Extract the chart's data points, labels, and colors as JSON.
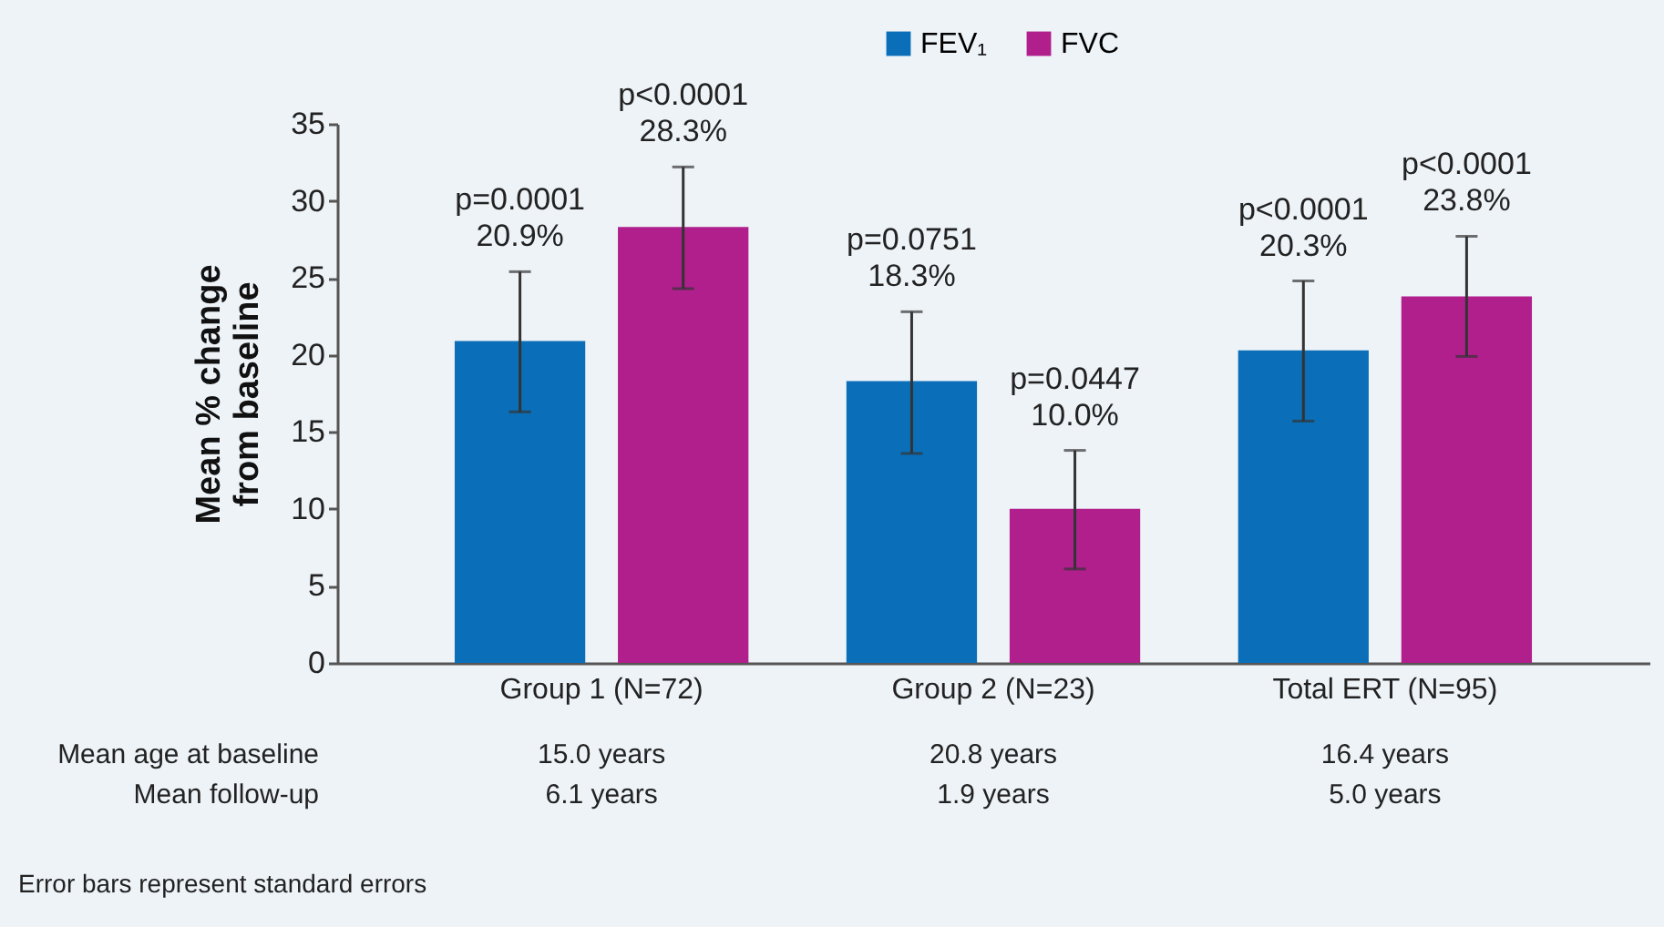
{
  "chart_data": {
    "type": "bar",
    "ylabel": "Mean % change from baseline",
    "categories": [
      "Group 1 (N=72)",
      "Group 2 (N=23)",
      "Total ERT (N=95)"
    ],
    "series": [
      {
        "name": "FEV₁",
        "color": "#0a6fb8",
        "values": [
          20.9,
          18.3,
          20.3
        ],
        "errors": [
          [
            16.3,
            25.4
          ],
          [
            13.6,
            22.8
          ],
          [
            15.7,
            24.8
          ]
        ],
        "value_labels": [
          "p=0.0001\n20.9%",
          "p=0.0751\n18.3%",
          "p<0.0001\n20.3%"
        ]
      },
      {
        "name": "FVC",
        "color": "#b01f8c",
        "values": [
          28.3,
          10.0,
          23.8
        ],
        "errors": [
          [
            24.3,
            32.2
          ],
          [
            6.1,
            13.8
          ],
          [
            19.9,
            27.7
          ]
        ],
        "value_labels": [
          "p<0.0001\n28.3%",
          "p=0.0447\n10.0%",
          "p<0.0001\n23.8%"
        ]
      }
    ],
    "ylim": [
      0,
      35
    ],
    "yticks": [
      0,
      5,
      10,
      15,
      20,
      25,
      30,
      35
    ],
    "grid": false,
    "legend": "top",
    "annotations": [
      "Mean age at baseline",
      "15.0 years",
      "20.8 years",
      "16.4 years",
      "Mean follow-up",
      "6.1 years",
      "1.9 years",
      "5.0 years",
      "Error bars represent standard errors"
    ]
  }
}
